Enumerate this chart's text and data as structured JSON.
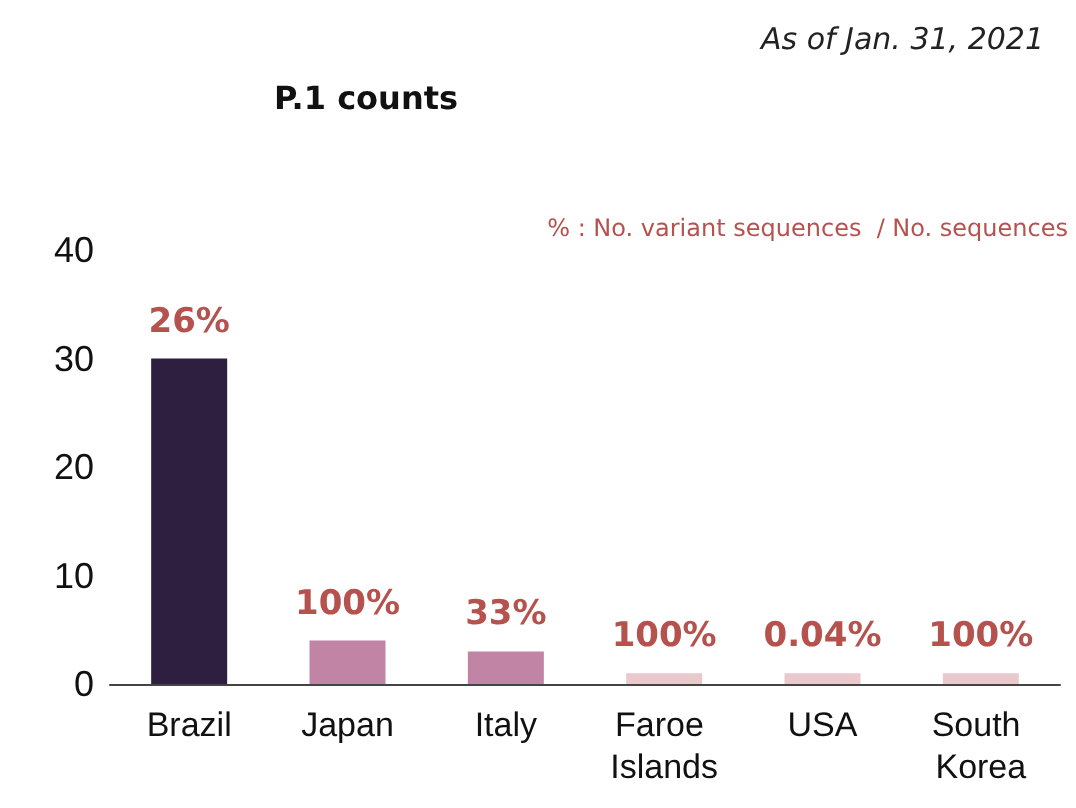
{
  "chart_data": {
    "type": "bar",
    "title": "P.1 counts",
    "annotations": [
      "As of Jan. 31, 2021",
      "% : No. variant sequences  / No. sequences",
      {
        "text": "26%",
        "x": "Brazil",
        "y": 30
      },
      {
        "text": "100%",
        "x": "Japan",
        "y": 4
      },
      {
        "text": "33%",
        "x": "Italy",
        "y": 3
      },
      {
        "text": "100%",
        "x": "Faroe Islands",
        "y": 1
      },
      {
        "text": "0.04%",
        "x": "USA",
        "y": 1
      },
      {
        "text": "100%",
        "x": "South Korea",
        "y": 1
      }
    ],
    "categories": [
      "Brazil",
      "Japan",
      "Italy",
      "Faroe Islands",
      "USA",
      "South Korea"
    ],
    "values": [
      30,
      4,
      3,
      1,
      1,
      1
    ],
    "colors": [
      "#2e1f40",
      "#c184a4",
      "#c184a4",
      "#e9c9cb",
      "#e9c9cb",
      "#e9c9cb"
    ],
    "ylim": [
      0,
      40
    ],
    "yticks": [
      0,
      10,
      20,
      30,
      40
    ],
    "grid": false
  }
}
